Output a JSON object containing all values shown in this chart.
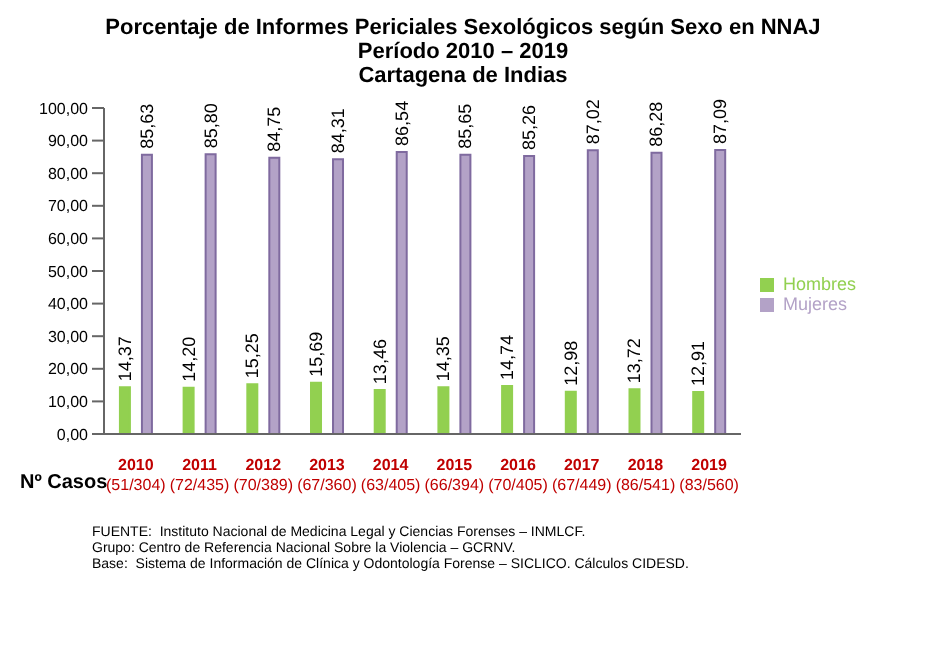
{
  "chart_data": {
    "type": "bar",
    "title": "Porcentaje de Informes Periciales Sexológicos según Sexo en NNAJ\nPeríodo 2010 – 2019\nCartagena de Indias",
    "categories": [
      "2010\n(51/304)",
      "2011\n(72/435)",
      "2012\n(70/389)",
      "2013\n(67/360)",
      "2014\n(63/405)",
      "2015\n(66/394)",
      "2016\n(70/405)",
      "2017\n(67/449)",
      "2018\n(86/541)",
      "2019\n(83/560)"
    ],
    "series": [
      {
        "name": "Hombres",
        "color": "#92d050",
        "values": [
          14.37,
          14.2,
          15.25,
          15.69,
          13.46,
          14.35,
          14.74,
          12.98,
          13.72,
          12.91
        ],
        "value_labels": [
          "14,37",
          "14,20",
          "15,25",
          "15,69",
          "13,46",
          "14,35",
          "14,74",
          "12,98",
          "13,72",
          "12,91"
        ]
      },
      {
        "name": "Mujeres",
        "color": "#b3a2c7",
        "values": [
          85.63,
          85.8,
          84.75,
          84.31,
          86.54,
          85.65,
          85.26,
          87.02,
          86.28,
          87.09
        ],
        "value_labels": [
          "85,63",
          "85,80",
          "84,75",
          "84,31",
          "86,54",
          "85,65",
          "85,26",
          "87,02",
          "86,28",
          "87,09"
        ]
      }
    ],
    "ylim": [
      0,
      100
    ],
    "yticks": [
      {
        "value": 0,
        "label": "0,00"
      },
      {
        "value": 10,
        "label": "10,00"
      },
      {
        "value": 20,
        "label": "20,00"
      },
      {
        "value": 30,
        "label": "30,00"
      },
      {
        "value": 40,
        "label": "40,00"
      },
      {
        "value": 50,
        "label": "50,00"
      },
      {
        "value": 60,
        "label": "60,00"
      },
      {
        "value": 70,
        "label": "70,00"
      },
      {
        "value": 80,
        "label": "80,00"
      },
      {
        "value": 90,
        "label": "90,00"
      },
      {
        "value": 100,
        "label": "100,00"
      }
    ],
    "grid": false,
    "legend": "right",
    "annotations": [
      "Nº Casos",
      "FUENTE:  Instituto Nacional de Medicina Legal y Ciencias Forenses – INMLCF.\nGrupo: Centro de Referencia Nacional Sobre la Violencia – GCRNV.\nBase:  Sistema de Información de Clínica y Odontología Forense – SICLICO. Cálculos CIDESD."
    ]
  }
}
